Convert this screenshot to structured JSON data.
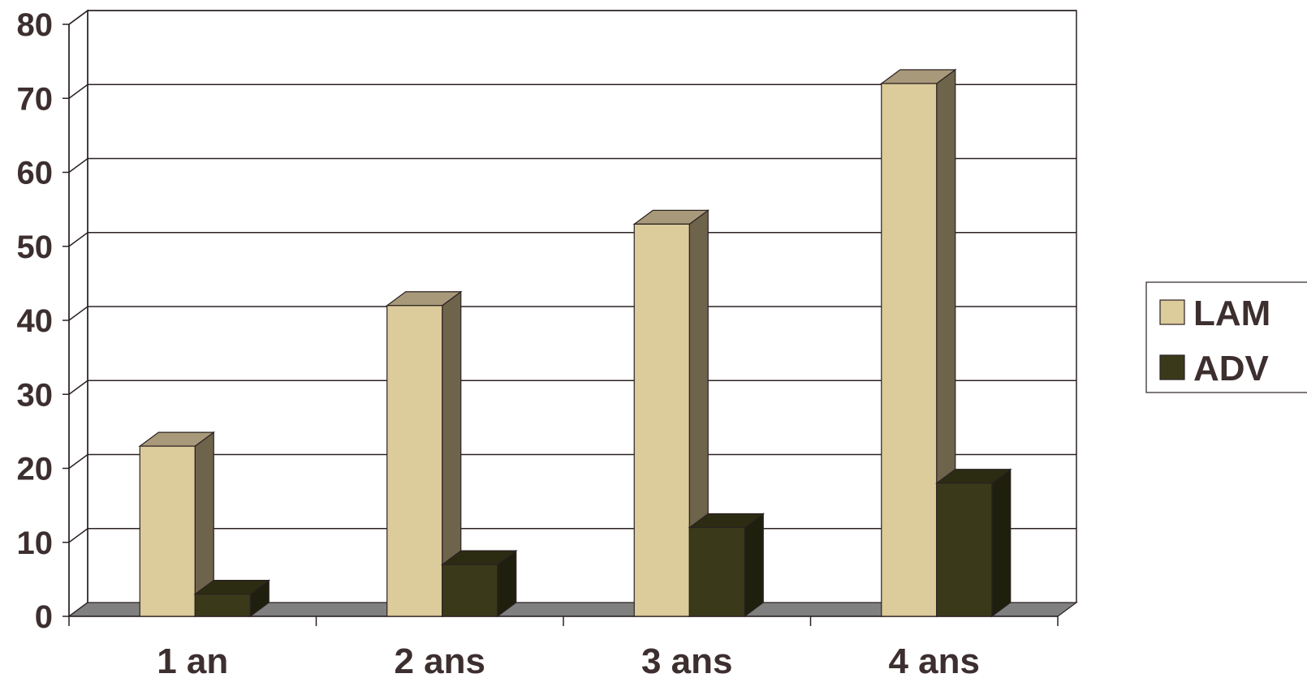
{
  "chart_data": {
    "type": "bar",
    "categories": [
      "1 an",
      "2 ans",
      "3 ans",
      "4 ans"
    ],
    "series": [
      {
        "name": "LAM",
        "values": [
          23,
          42,
          53,
          72
        ],
        "color": "#dccb9b",
        "side_color": "#6e644c",
        "top_color": "#a8997a"
      },
      {
        "name": "ADV",
        "values": [
          3,
          7,
          12,
          18
        ],
        "color": "#3a3a1a",
        "side_color": "#1f1f0d",
        "top_color": "#2c2c12"
      }
    ],
    "yticks": [
      "0",
      "10",
      "20",
      "30",
      "40",
      "50",
      "60",
      "70",
      "80"
    ],
    "ylim": [
      0,
      80
    ],
    "title": "",
    "xlabel": "",
    "ylabel": "",
    "grid": true,
    "legend_position": "right",
    "style": "3d-clustered-column",
    "floor_color": "#808080"
  }
}
